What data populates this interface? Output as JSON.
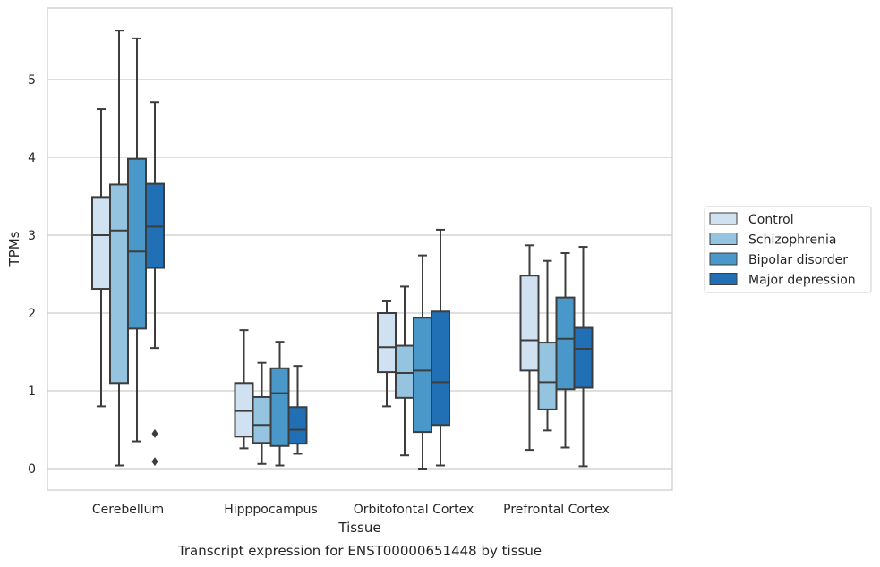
{
  "chart_data": {
    "type": "box",
    "title": "",
    "caption": "Transcript expression for ENST00000651448 by tissue",
    "xlabel": "Tissue",
    "ylabel": "TPMs",
    "ylim": [
      -0.28,
      5.9
    ],
    "yticks": [
      0,
      1,
      2,
      3,
      4,
      5
    ],
    "grid": true,
    "legend_position": "right",
    "categories": [
      "Cerebellum",
      "Hipppocampus",
      "Orbitofontal Cortex",
      "Prefrontal Cortex"
    ],
    "series": [
      {
        "name": "Control",
        "color": "#d0e1f2",
        "boxes": [
          {
            "whisker_low": 0.8,
            "q1": 2.31,
            "median": 3.0,
            "q3": 3.49,
            "whisker_high": 4.62,
            "outliers": []
          },
          {
            "whisker_low": 0.26,
            "q1": 0.41,
            "median": 0.74,
            "q3": 1.1,
            "whisker_high": 1.78,
            "outliers": []
          },
          {
            "whisker_low": 0.8,
            "q1": 1.24,
            "median": 1.56,
            "q3": 2.0,
            "whisker_high": 2.15,
            "outliers": []
          },
          {
            "whisker_low": 0.24,
            "q1": 1.26,
            "median": 1.65,
            "q3": 2.48,
            "whisker_high": 2.87,
            "outliers": []
          }
        ]
      },
      {
        "name": "Schizophrenia",
        "color": "#94c4df",
        "boxes": [
          {
            "whisker_low": 0.04,
            "q1": 1.1,
            "median": 3.06,
            "q3": 3.65,
            "whisker_high": 5.63,
            "outliers": []
          },
          {
            "whisker_low": 0.06,
            "q1": 0.33,
            "median": 0.56,
            "q3": 0.92,
            "whisker_high": 1.36,
            "outliers": []
          },
          {
            "whisker_low": 0.17,
            "q1": 0.91,
            "median": 1.23,
            "q3": 1.58,
            "whisker_high": 2.34,
            "outliers": []
          },
          {
            "whisker_low": 0.49,
            "q1": 0.76,
            "median": 1.11,
            "q3": 1.62,
            "whisker_high": 2.67,
            "outliers": []
          }
        ]
      },
      {
        "name": "Bipolar disorder",
        "color": "#4a98c9",
        "boxes": [
          {
            "whisker_low": 0.35,
            "q1": 1.8,
            "median": 2.79,
            "q3": 3.98,
            "whisker_high": 5.53,
            "outliers": []
          },
          {
            "whisker_low": 0.04,
            "q1": 0.29,
            "median": 0.97,
            "q3": 1.29,
            "whisker_high": 1.63,
            "outliers": []
          },
          {
            "whisker_low": 0.0,
            "q1": 0.47,
            "median": 1.26,
            "q3": 1.94,
            "whisker_high": 2.74,
            "outliers": []
          },
          {
            "whisker_low": 0.27,
            "q1": 1.02,
            "median": 1.67,
            "q3": 2.2,
            "whisker_high": 2.77,
            "outliers": []
          }
        ]
      },
      {
        "name": "Major depression",
        "color": "#2170b5",
        "boxes": [
          {
            "whisker_low": 1.55,
            "q1": 2.58,
            "median": 3.11,
            "q3": 3.66,
            "whisker_high": 4.71,
            "outliers": [
              0.45,
              0.09
            ]
          },
          {
            "whisker_low": 0.19,
            "q1": 0.32,
            "median": 0.5,
            "q3": 0.79,
            "whisker_high": 1.32,
            "outliers": []
          },
          {
            "whisker_low": 0.04,
            "q1": 0.56,
            "median": 1.11,
            "q3": 2.02,
            "whisker_high": 3.07,
            "outliers": []
          },
          {
            "whisker_low": 0.03,
            "q1": 1.04,
            "median": 1.54,
            "q3": 1.81,
            "whisker_high": 2.85,
            "outliers": []
          }
        ]
      }
    ]
  }
}
